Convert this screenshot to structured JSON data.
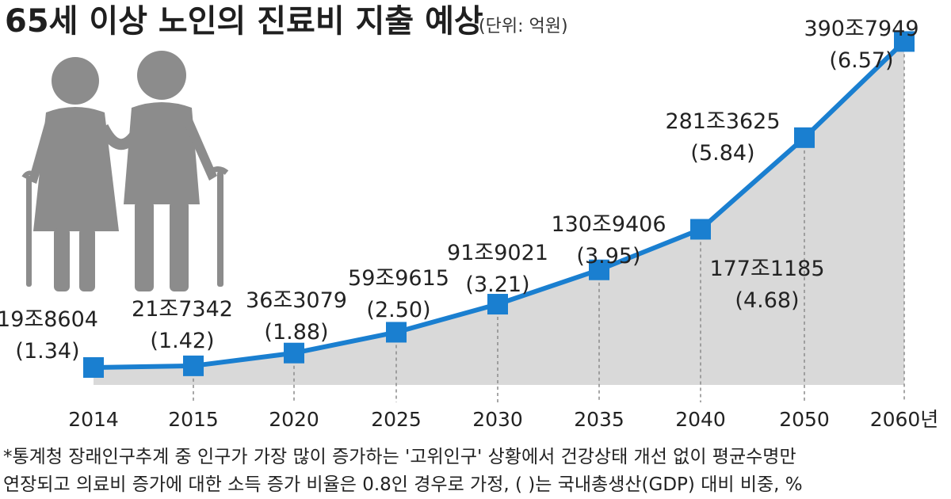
{
  "chart_data": {
    "type": "line",
    "title": "65세 이상 노인의 진료비 지출 예상",
    "unit": "(단위: 억원)",
    "x_suffix": "년",
    "categories": [
      "2014",
      "2015",
      "2020",
      "2025",
      "2030",
      "2035",
      "2040",
      "2050",
      "2060"
    ],
    "series": [
      {
        "values": [
          198604,
          217342,
          363079,
          599615,
          919021,
          1309406,
          1771185,
          2813625,
          3907949
        ],
        "labels": [
          "19조8604",
          "21조7342",
          "36조3079",
          "59조9615",
          "91조9021",
          "130조9406",
          "177조1185",
          "281조3625",
          "390조7949"
        ],
        "gdp_share": [
          "(1.34)",
          "(1.42)",
          "(1.88)",
          "(2.50)",
          "(3.21)",
          "(3.95)",
          "(4.68)",
          "(5.84)",
          "(6.57)"
        ]
      }
    ],
    "ylim": [
      0,
      4200000
    ],
    "grid": false,
    "colors": {
      "line": "#1a7fd0",
      "area": "#d9d9d9",
      "marker": "#1a7fd0",
      "guide": "#8a8a8a"
    },
    "icon": "elderly-couple-icon",
    "footnotes": [
      "*통계청 장래인구추계 중 인구가 가장 많이 증가하는 '고위인구' 상황에서 건강상태 개선 없이 평균수명만",
      "연장되고 의료비 증가에 대한 소득 증가 비율은 0.8인 경우로 가정, (  )는 국내총생산(GDP) 대비 비중, %"
    ]
  }
}
